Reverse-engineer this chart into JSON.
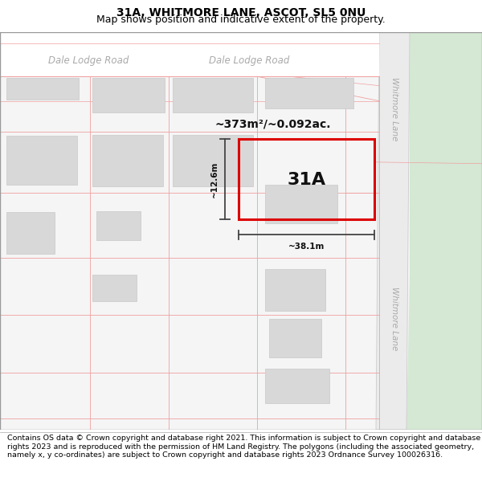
{
  "title_line1": "31A, WHITMORE LANE, ASCOT, SL5 0NU",
  "title_line2": "Map shows position and indicative extent of the property.",
  "footer_text": "Contains OS data © Crown copyright and database right 2021. This information is subject to Crown copyright and database rights 2023 and is reproduced with the permission of HM Land Registry. The polygons (including the associated geometry, namely x, y co-ordinates) are subject to Crown copyright and database rights 2023 Ordnance Survey 100026316.",
  "area_text": "~373m²/~0.092ac.",
  "label_31A": "31A",
  "dim_width": "~38.1m",
  "dim_height": "~12.6m",
  "road_label_top_left": "Dale Lodge Road",
  "road_label_top_right": "Dale Lodge Road",
  "road_label_wl_top": "Whitmore Lane",
  "road_label_wl_bot": "Whitmore Lane",
  "map_bg": "#f5f5f5",
  "road_bg": "#efefef",
  "green_color": "#d4e8d4",
  "building_fill": "#d8d8d8",
  "building_edge": "#c8c8c8",
  "plot_edge_light": "#f0a0a0",
  "plot_edge_red": "#dd0000",
  "dim_line_color": "#444444",
  "road_label_color": "#aaaaaa",
  "wl_road_fill": "#ebebeb",
  "title_fontsize": 10,
  "footer_fontsize": 6.8
}
